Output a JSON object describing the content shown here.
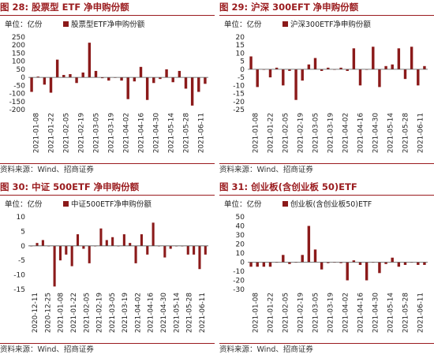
{
  "source_text": "资料来源：Wind、招商证券",
  "colors": {
    "bar": "#8b1a1a",
    "title": "#9a1b1e",
    "axis": "#555555"
  },
  "chart_data": [
    {
      "figure_title": "图 28:  股票型 ETF 净申购份额",
      "type": "bar",
      "unit_label": "单位：亿份",
      "legend": "股票型ETF净申购份额",
      "ylim": [
        -200,
        250
      ],
      "yticks": [
        -200,
        -150,
        -100,
        -50,
        0,
        50,
        100,
        150,
        200,
        250
      ],
      "xticks": [
        "2021-01-08",
        "2021-01-22",
        "2021-02-05",
        "2021-02-19",
        "2021-03-05",
        "2021-03-19",
        "2021-04-02",
        "2021-04-16",
        "2021-04-30",
        "2021-05-14",
        "2021-05-28",
        "2021-06-11"
      ],
      "values": [
        -90,
        5,
        -45,
        -95,
        110,
        15,
        20,
        -35,
        30,
        215,
        40,
        -5,
        -20,
        0,
        -20,
        -135,
        -25,
        65,
        -140,
        -35,
        -10,
        50,
        -30,
        40,
        -70,
        -175,
        -90,
        -40
      ]
    },
    {
      "figure_title": "图 29:  沪深 300EFT 净申购份额",
      "type": "bar",
      "unit_label": "单位：亿份",
      "legend": "沪深300ETF净申购份额",
      "ylim": [
        -25,
        20
      ],
      "yticks": [
        -25,
        -20,
        -15,
        -10,
        -5,
        0,
        5,
        10,
        15,
        20
      ],
      "xticks": [
        "2021-01-08",
        "2021-01-22",
        "2021-02-05",
        "2021-02-19",
        "2021-03-05",
        "2021-03-19",
        "2021-04-02",
        "2021-04-16",
        "2021-04-30",
        "2021-05-14",
        "2021-05-28",
        "2021-06-11"
      ],
      "values": [
        8,
        -11,
        0,
        -5,
        1,
        -10,
        -1,
        -19,
        -7,
        3,
        7,
        -1,
        1,
        0,
        1,
        -1,
        13,
        -10,
        0,
        14,
        -11,
        2,
        3,
        13,
        -6,
        14,
        -10,
        2
      ]
    },
    {
      "figure_title": "图 30:  中证 500ETF 净申购份额",
      "type": "bar",
      "unit_label": "单位：亿份",
      "legend": "中证500ETF净申购份额",
      "ylim": [
        -15,
        10
      ],
      "yticks": [
        -15,
        -10,
        -5,
        0,
        5,
        10
      ],
      "xticks": [
        "2020-12-11",
        "2020-12-25",
        "2021-01-08",
        "2021-01-22",
        "2021-02-05",
        "2021-02-19",
        "2021-03-05",
        "2021-03-19",
        "2021-04-02",
        "2021-04-16",
        "2021-04-30",
        "2021-05-14",
        "2021-05-28",
        "2021-06-11"
      ],
      "values": [
        0,
        1,
        2,
        0,
        -14,
        -5,
        -3,
        -7,
        4,
        -1,
        -6,
        0,
        6,
        2,
        3,
        0,
        4,
        1,
        -6,
        4,
        -3,
        8,
        0,
        -4,
        -1,
        0,
        0,
        -3,
        -3,
        -8,
        -3
      ]
    },
    {
      "figure_title": "图 31:  创业板(含创业板 50)ETF",
      "type": "bar",
      "unit_label": "单位：亿份",
      "legend": "创业板(含创业板50)ETF",
      "ylim": [
        -30,
        50
      ],
      "yticks": [
        -30,
        -20,
        -10,
        0,
        10,
        20,
        30,
        40,
        50
      ],
      "xticks": [
        "2021-01-08",
        "2021-01-22",
        "2021-02-05",
        "2021-02-19",
        "2021-03-05",
        "2021-03-19",
        "2021-04-02",
        "2021-04-16",
        "2021-04-30",
        "2021-05-14",
        "2021-05-28",
        "2021-06-11"
      ],
      "values": [
        -5,
        -5,
        -5,
        -5,
        0,
        8,
        -2,
        0,
        8,
        40,
        14,
        -8,
        -1,
        0,
        -1,
        -20,
        2,
        -3,
        -20,
        0,
        -12,
        -2,
        5,
        -5,
        -3,
        0,
        -3,
        -3
      ]
    }
  ]
}
